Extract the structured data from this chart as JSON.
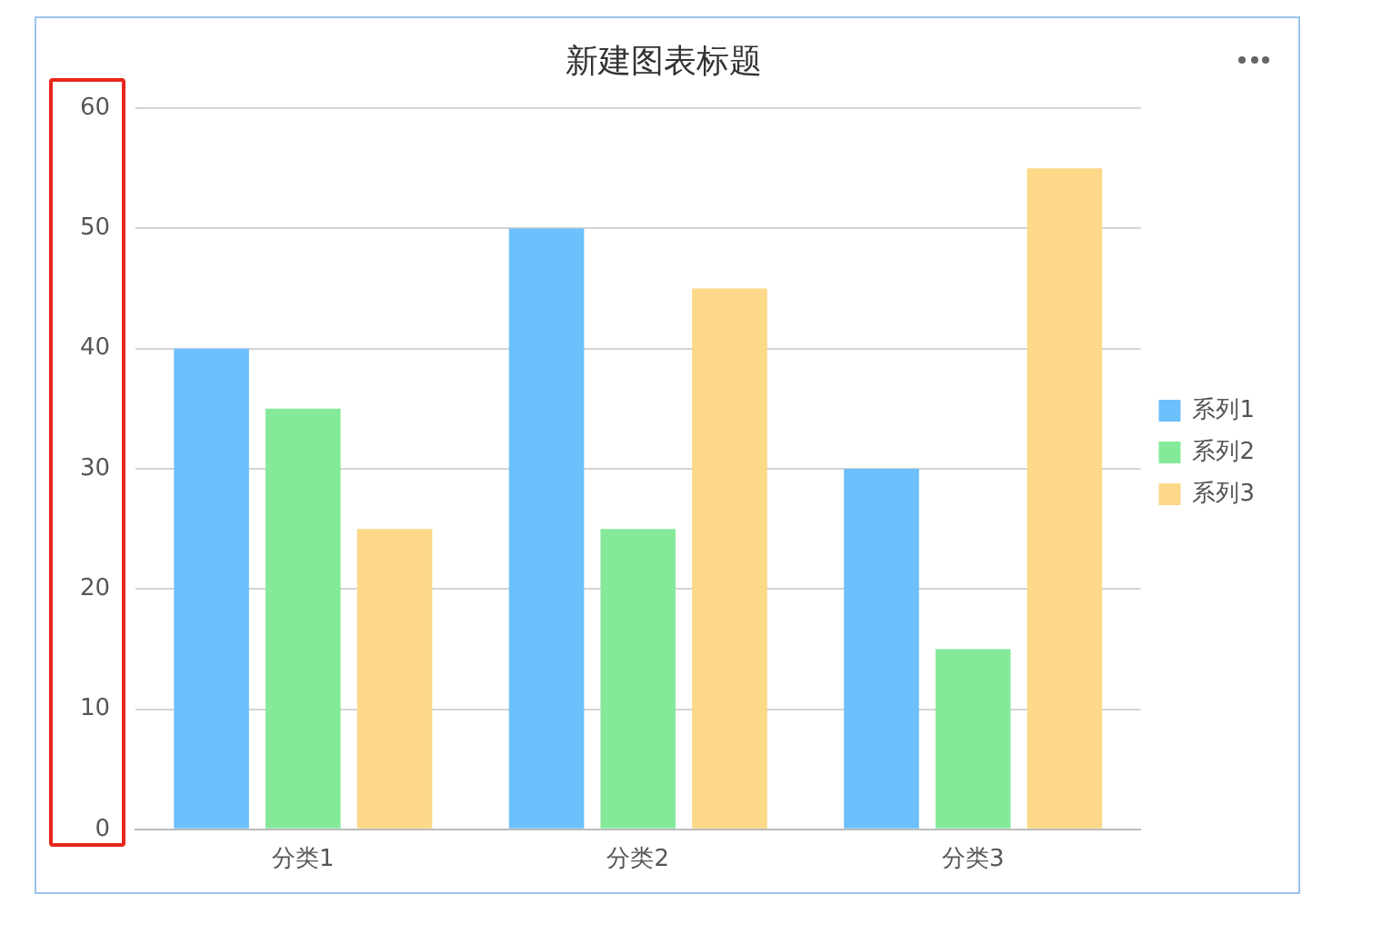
{
  "chart_data": {
    "type": "bar",
    "title": "新建图表标题",
    "categories": [
      "分类1",
      "分类2",
      "分类3"
    ],
    "series": [
      {
        "name": "系列1",
        "color": "#6cc0fb",
        "values": [
          40,
          50,
          30
        ]
      },
      {
        "name": "系列2",
        "color": "#84ea9a",
        "values": [
          35,
          25,
          15
        ]
      },
      {
        "name": "系列3",
        "color": "#fcd888",
        "values": [
          25,
          45,
          55
        ]
      }
    ],
    "ylim": [
      0,
      60
    ],
    "yticks": [
      0,
      10,
      20,
      30,
      40,
      50,
      60
    ],
    "grid": "y",
    "legend": "right"
  }
}
